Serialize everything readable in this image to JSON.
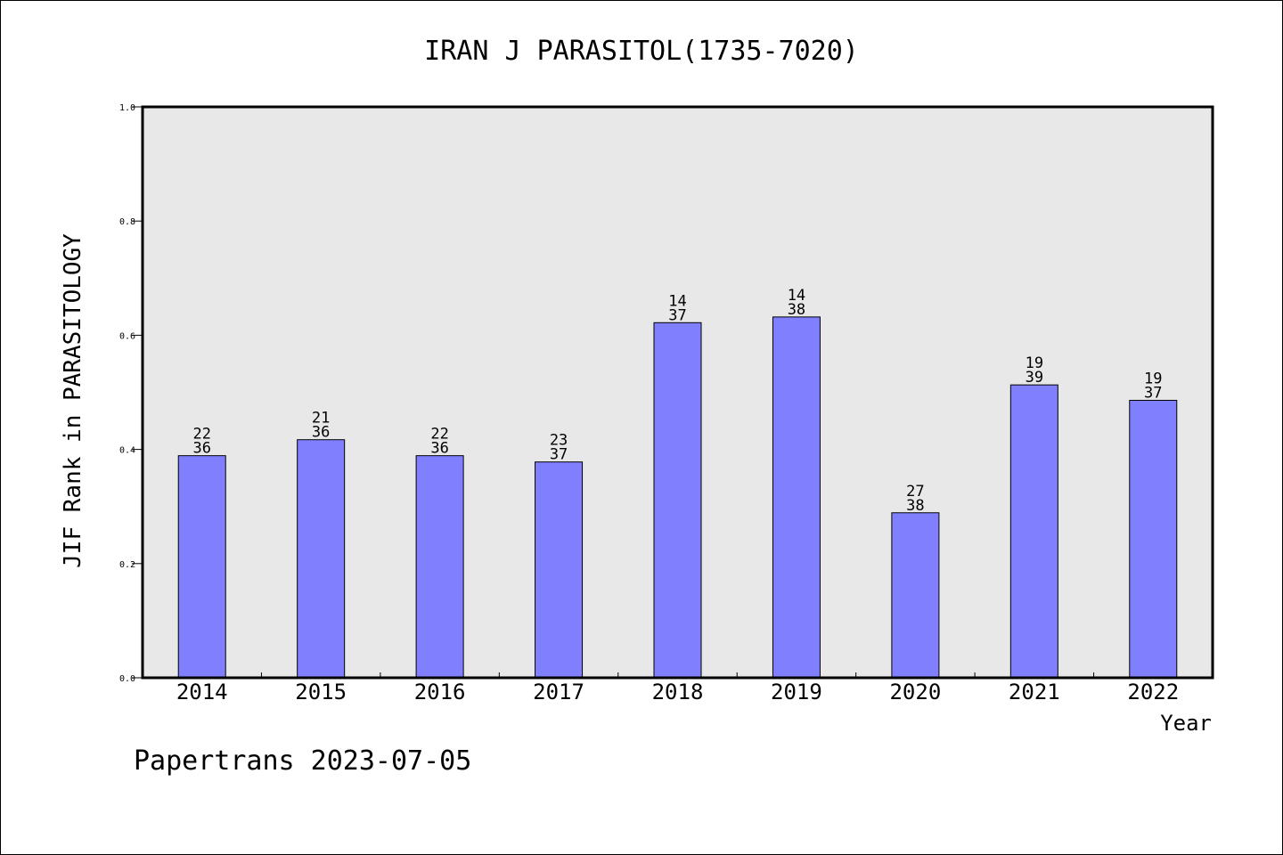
{
  "chart_data": {
    "type": "bar",
    "title": "IRAN J PARASITOL(1735-7020)",
    "xlabel": "Year",
    "ylabel": "JIF Rank in PARASITOLOGY",
    "ylim": [
      0,
      1.0
    ],
    "yticks": [
      "0.0",
      "0.2",
      "0.4",
      "0.6",
      "0.8",
      "1.0"
    ],
    "categories": [
      "2014",
      "2015",
      "2016",
      "2017",
      "2018",
      "2019",
      "2020",
      "2021",
      "2022"
    ],
    "values": [
      0.389,
      0.417,
      0.389,
      0.378,
      0.622,
      0.632,
      0.289,
      0.513,
      0.486
    ],
    "rank_labels": [
      [
        "22",
        "36"
      ],
      [
        "21",
        "36"
      ],
      [
        "22",
        "36"
      ],
      [
        "23",
        "37"
      ],
      [
        "14",
        "37"
      ],
      [
        "14",
        "38"
      ],
      [
        "27",
        "38"
      ],
      [
        "19",
        "39"
      ],
      [
        "19",
        "37"
      ]
    ],
    "grid": false,
    "legend": "none",
    "colors": {
      "bar": "#8080ff",
      "plot_background": "#e8e8e8",
      "bar_edge": "#000000"
    }
  },
  "footer": "Papertrans 2023-07-05"
}
